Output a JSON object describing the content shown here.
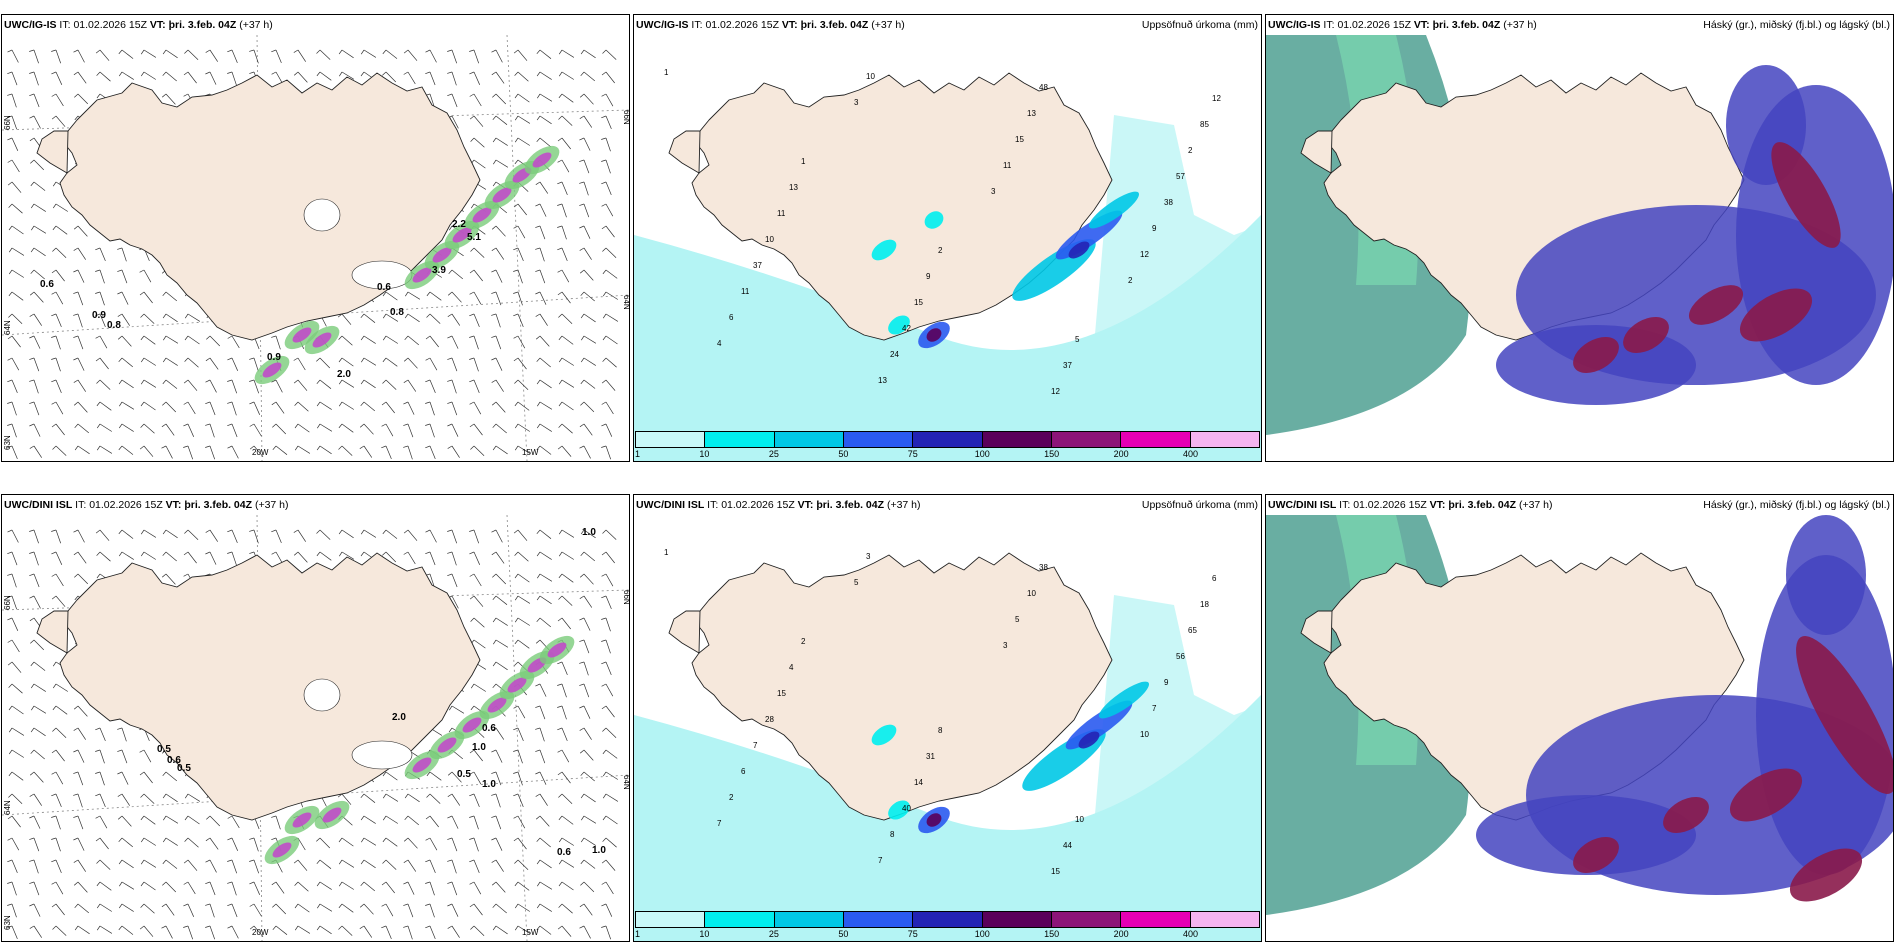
{
  "panels": [
    {
      "id": "p1",
      "model": "UWC/IG-IS",
      "it_label": "IT:",
      "it": "01.02.2026 15Z",
      "vt_label": "VT:",
      "vt": "þri. 3.feb. 04Z",
      "lead": "(+37 h)",
      "product": "",
      "kind": "wind"
    },
    {
      "id": "p2",
      "model": "UWC/IG-IS",
      "it_label": "IT:",
      "it": "01.02.2026 15Z",
      "vt_label": "VT:",
      "vt": "þri. 3.feb. 04Z",
      "lead": "(+37 h)",
      "product": "Uppsöfnuð úrkoma (mm)",
      "kind": "precip"
    },
    {
      "id": "p3",
      "model": "UWC/IG-IS",
      "it_label": "IT:",
      "it": "01.02.2026 15Z",
      "vt_label": "VT:",
      "vt": "þri. 3.feb. 04Z",
      "lead": "(+37 h)",
      "product": "Háský (gr.), miðský (fj.bl.) og lágský (bl.)",
      "kind": "cloud"
    },
    {
      "id": "p4",
      "model": "UWC/DINI ISL",
      "it_label": "IT:",
      "it": "01.02.2026 15Z",
      "vt_label": "VT:",
      "vt": "þri. 3.feb. 04Z",
      "lead": "(+37 h)",
      "product": "",
      "kind": "wind"
    },
    {
      "id": "p5",
      "model": "UWC/DINI ISL",
      "it_label": "IT:",
      "it": "01.02.2026 15Z",
      "vt_label": "VT:",
      "vt": "þri. 3.feb. 04Z",
      "lead": "(+37 h)",
      "product": "Uppsöfnuð úrkoma (mm)",
      "kind": "precip"
    },
    {
      "id": "p6",
      "model": "UWC/DINI ISL",
      "it_label": "IT:",
      "it": "01.02.2026 15Z",
      "vt_label": "VT:",
      "vt": "þri. 3.feb. 04Z",
      "lead": "(+37 h)",
      "product": "Háský (gr.), miðský (fj.bl.) og lágský (bl.)",
      "kind": "cloud"
    }
  ],
  "axis_labels": {
    "lon_20w": "20W",
    "lon_15w": "15W",
    "lat_66n": "66N",
    "lat_64n": "64N",
    "lat_63n": "63N"
  },
  "colorbar": {
    "ticks": [
      "1",
      "10",
      "25",
      "50",
      "75",
      "100",
      "150",
      "200",
      "400"
    ],
    "colors": [
      "#c8f8f8",
      "#00eeee",
      "#00c8e6",
      "#2a5af0",
      "#2323b4",
      "#5a005a",
      "#8c1478",
      "#e600b4",
      "#f5b4f0"
    ]
  },
  "precip_labels_ig": [
    "1",
    "1",
    "2",
    "5",
    "12",
    "13",
    "9",
    "37",
    "85",
    "11",
    "15",
    "12",
    "2",
    "10",
    "42",
    "48",
    "57",
    "37",
    "24",
    "13",
    "38",
    "11",
    "13",
    "15",
    "9",
    "6",
    "10",
    "11",
    "12",
    "4",
    "3",
    "3",
    "2"
  ],
  "precip_labels_dini": [
    "1",
    "2",
    "8",
    "10",
    "6",
    "4",
    "31",
    "44",
    "18",
    "15",
    "14",
    "15",
    "65",
    "28",
    "40",
    "38",
    "56",
    "7",
    "8",
    "10",
    "9",
    "6",
    "7",
    "5",
    "7",
    "2",
    "3",
    "3",
    "10",
    "7",
    "5"
  ],
  "wind_labels_ig": [
    "0.6",
    "0.9",
    "0.8",
    "0.9",
    "2.0",
    "0.8",
    "0.6",
    "3.9",
    "5.1",
    "2.2"
  ],
  "wind_labels_dini": [
    "0.5",
    "0.6",
    "0.5",
    "1.0",
    "0.5",
    "1.0",
    "2.0",
    "0.6",
    "1.0",
    "0.6",
    "1.0"
  ],
  "colors": {
    "land": "#f6e8dc",
    "sea": "#ffffff",
    "precip_sea": "#b4f4f4",
    "cloud_high": "#2a8c7a",
    "cloud_mid": "#4444c0",
    "cloud_low": "#8a1a4a"
  }
}
